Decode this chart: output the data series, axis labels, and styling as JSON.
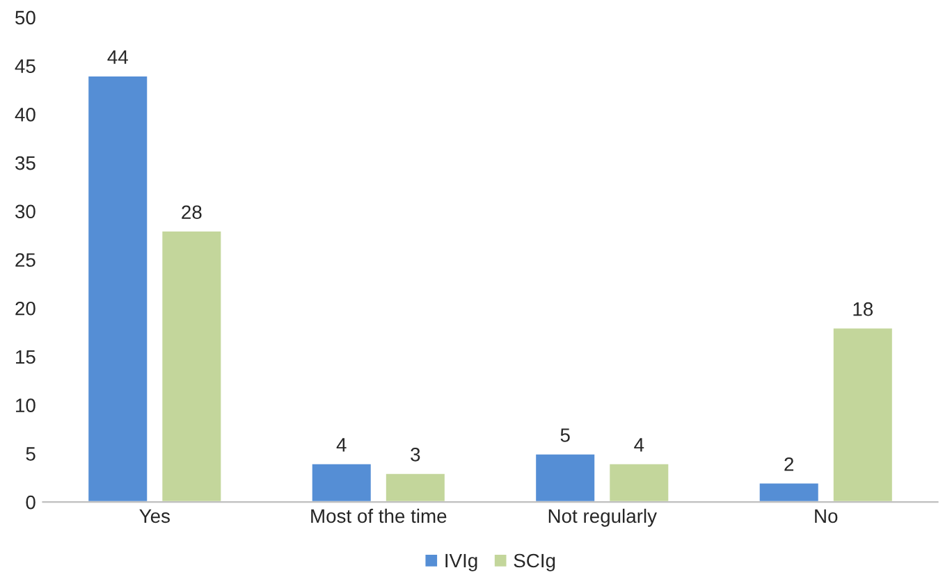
{
  "chart_data": {
    "type": "bar",
    "categories": [
      "Yes",
      "Most of the time",
      "Not regularly",
      "No"
    ],
    "series": [
      {
        "name": "IVIg",
        "color": "#558ed5",
        "values": [
          44,
          4,
          5,
          2
        ]
      },
      {
        "name": "SCIg",
        "color": "#c3d69b",
        "values": [
          28,
          3,
          4,
          18
        ]
      }
    ],
    "ylim": [
      0,
      50
    ],
    "yticks": [
      0,
      5,
      10,
      15,
      20,
      25,
      30,
      35,
      40,
      45,
      50
    ],
    "data_labels": true,
    "legend": "bottom",
    "grid": false
  }
}
